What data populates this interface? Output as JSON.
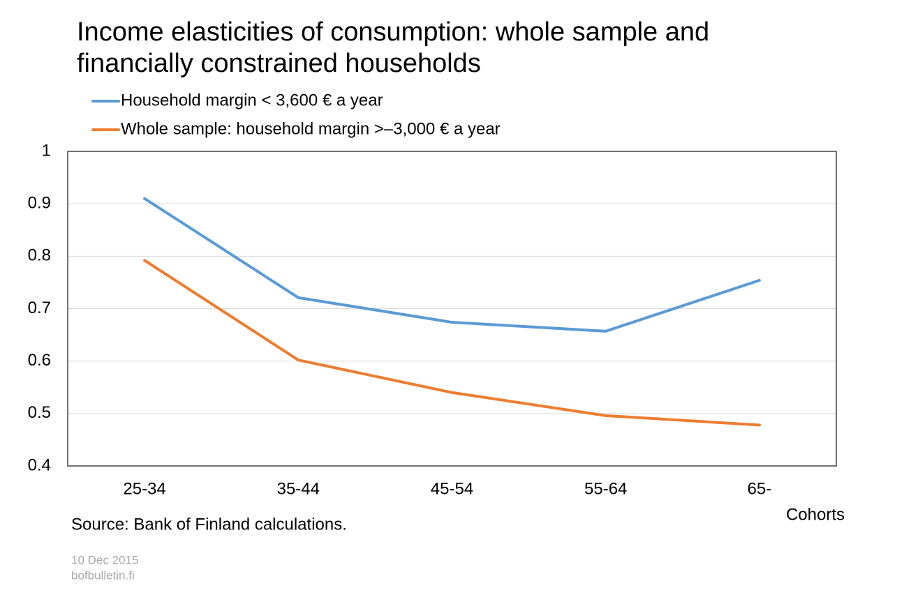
{
  "chart_data": {
    "type": "line",
    "title": "Income elasticities of consumption: whole sample and financially constrained households",
    "categories": [
      "25-34",
      "35-44",
      "45-54",
      "55-64",
      "65-"
    ],
    "x_label": "Cohorts",
    "series": [
      {
        "name": "Household margin < 3,600 € a year",
        "color": "#5b9bd5",
        "values": [
          0.91,
          0.721,
          0.674,
          0.657,
          0.754
        ]
      },
      {
        "name": "Whole sample: household margin >–3,000 € a year",
        "color": "#ed7d31",
        "values": [
          0.792,
          0.602,
          0.54,
          0.496,
          0.478
        ]
      }
    ],
    "ylim": [
      0.4,
      1
    ],
    "yticks": [
      0.4,
      0.5,
      0.6,
      0.7,
      0.8,
      0.9,
      1
    ],
    "grid": true,
    "source": "Source: Bank of Finland calculations.",
    "date": "10 Dec 2015",
    "site": "bofbulletin.fi"
  }
}
